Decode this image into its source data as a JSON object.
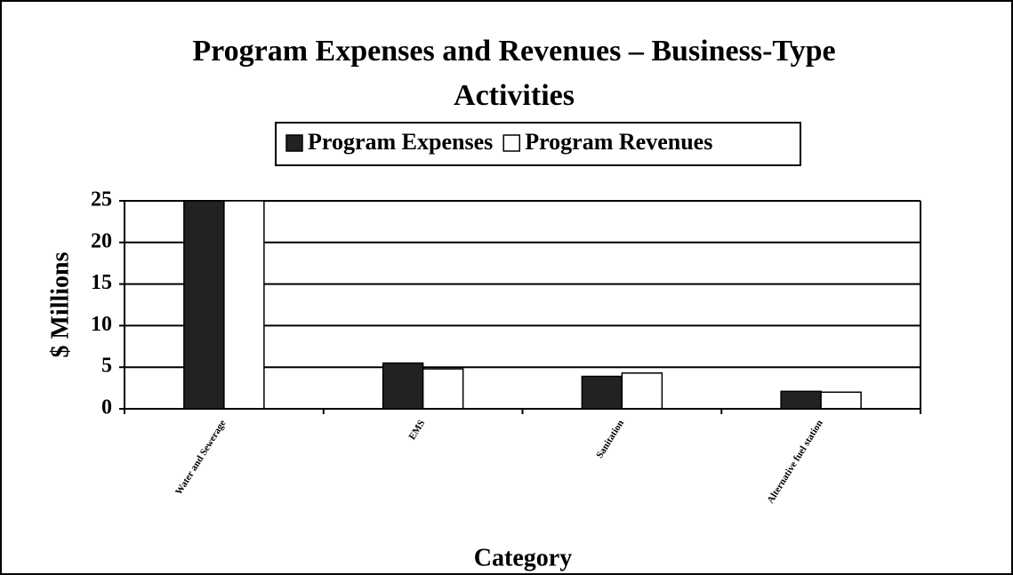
{
  "chart_data": {
    "type": "bar",
    "title": [
      "Program Expenses and Revenues – Business-Type",
      "Activities"
    ],
    "x_label": "Category",
    "y_label": "$  Millions",
    "categories": [
      "Water and Sewerage",
      "EMS",
      "Sanitation",
      "Alternative fuel station"
    ],
    "series": [
      {
        "name": "Program Expenses",
        "color": "#222222",
        "values": [
          25,
          5.5,
          3.9,
          2.1
        ]
      },
      {
        "name": "Program Revenues",
        "color": "#ffffff",
        "values": [
          25,
          4.8,
          4.3,
          2.0
        ]
      }
    ],
    "ylim": [
      0,
      25
    ],
    "yticks": [
      0,
      5,
      10,
      15,
      20,
      25
    ],
    "grid": true
  }
}
